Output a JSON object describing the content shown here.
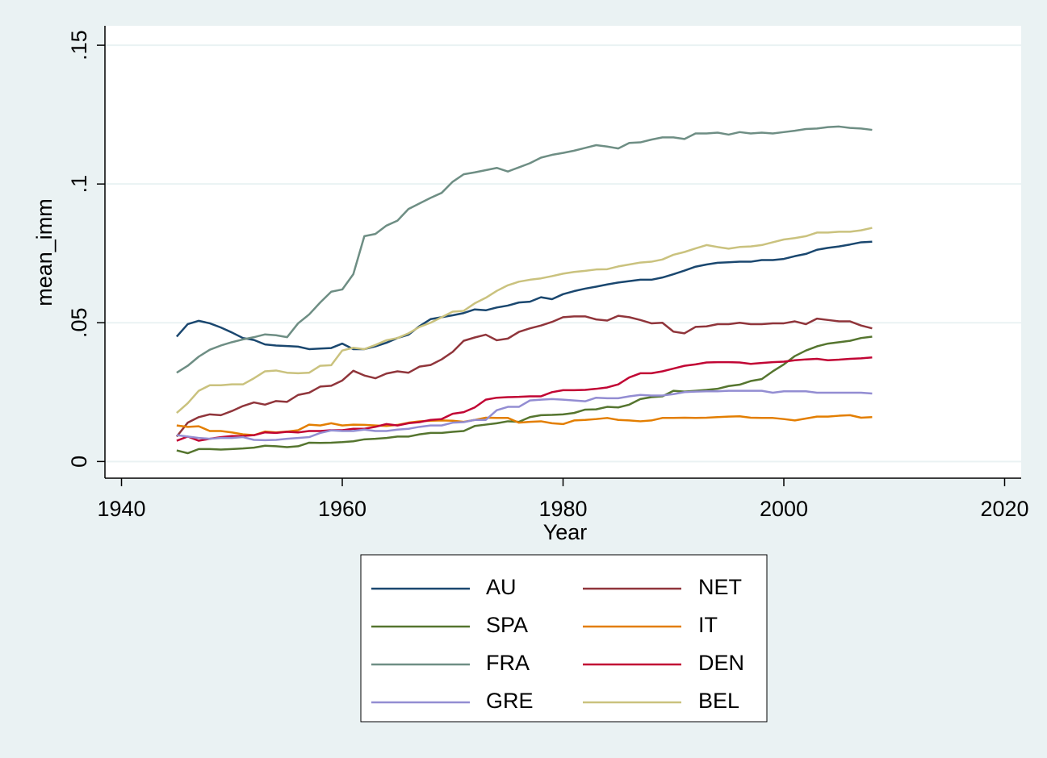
{
  "chart_data": {
    "type": "line",
    "x_label": "Year",
    "y_label": "mean_imm",
    "x": [
      1945,
      1946,
      1947,
      1948,
      1949,
      1950,
      1951,
      1952,
      1953,
      1954,
      1955,
      1956,
      1957,
      1958,
      1959,
      1960,
      1961,
      1962,
      1963,
      1964,
      1965,
      1966,
      1967,
      1968,
      1969,
      1970,
      1971,
      1972,
      1973,
      1974,
      1975,
      1976,
      1977,
      1978,
      1979,
      1980,
      1981,
      1982,
      1983,
      1984,
      1985,
      1986,
      1987,
      1988,
      1989,
      1990,
      1991,
      1992,
      1993,
      1994,
      1995,
      1996,
      1997,
      1998,
      1999,
      2000,
      2001,
      2002,
      2003,
      2004,
      2005,
      2006,
      2007,
      2008
    ],
    "xlim": [
      1938.5,
      2021.5
    ],
    "xticks": [
      1940,
      1960,
      1980,
      2000,
      2020
    ],
    "ylim": [
      -0.006,
      0.157
    ],
    "yticks": [
      0,
      {
        "value": 0.05,
        "label": ".05"
      },
      {
        "value": 0.1,
        "label": ".1"
      },
      {
        "value": 0.15,
        "label": ".15"
      }
    ],
    "grid": true,
    "legend": "bottom",
    "series": [
      {
        "name": "AU",
        "color": "#1a476f",
        "values": [
          0.045,
          0.0495,
          0.0507,
          0.0498,
          0.0483,
          0.0465,
          0.0445,
          0.0438,
          0.0422,
          0.0418,
          0.0416,
          0.0414,
          0.0405,
          0.0407,
          0.0409,
          0.0425,
          0.0405,
          0.0405,
          0.0415,
          0.0428,
          0.0445,
          0.0457,
          0.0488,
          0.0513,
          0.052,
          0.0527,
          0.0535,
          0.0548,
          0.0545,
          0.0555,
          0.0562,
          0.0573,
          0.0576,
          0.0592,
          0.0585,
          0.0603,
          0.0614,
          0.0623,
          0.063,
          0.0638,
          0.0645,
          0.065,
          0.0655,
          0.0655,
          0.0663,
          0.0675,
          0.0688,
          0.0702,
          0.071,
          0.0716,
          0.0718,
          0.072,
          0.072,
          0.0726,
          0.0726,
          0.073,
          0.074,
          0.0748,
          0.0763,
          0.077,
          0.0775,
          0.0782,
          0.079,
          0.0792
        ]
      },
      {
        "name": "NET",
        "color": "#90353b",
        "values": [
          0.009,
          0.014,
          0.016,
          0.017,
          0.0167,
          0.0182,
          0.02,
          0.0213,
          0.0205,
          0.0218,
          0.0215,
          0.024,
          0.0248,
          0.027,
          0.0273,
          0.0292,
          0.0327,
          0.031,
          0.03,
          0.0317,
          0.0325,
          0.032,
          0.0342,
          0.0348,
          0.0368,
          0.0395,
          0.0435,
          0.0447,
          0.0457,
          0.0437,
          0.0443,
          0.0467,
          0.048,
          0.049,
          0.0503,
          0.052,
          0.0523,
          0.0523,
          0.0512,
          0.0508,
          0.0525,
          0.052,
          0.051,
          0.0498,
          0.05,
          0.0468,
          0.0462,
          0.0485,
          0.0487,
          0.0495,
          0.0495,
          0.05,
          0.0495,
          0.0495,
          0.0498,
          0.0498,
          0.0505,
          0.0495,
          0.0515,
          0.051,
          0.0505,
          0.0505,
          0.049,
          0.048
        ]
      },
      {
        "name": "SPA",
        "color": "#55752f",
        "values": [
          0.004,
          0.003,
          0.0045,
          0.0045,
          0.0043,
          0.0045,
          0.0047,
          0.005,
          0.0057,
          0.0055,
          0.0052,
          0.0055,
          0.0068,
          0.0067,
          0.0068,
          0.007,
          0.0073,
          0.008,
          0.0082,
          0.0085,
          0.009,
          0.009,
          0.0098,
          0.0103,
          0.0103,
          0.0107,
          0.011,
          0.0128,
          0.0133,
          0.0138,
          0.0145,
          0.0143,
          0.016,
          0.0167,
          0.0168,
          0.017,
          0.0175,
          0.0187,
          0.0188,
          0.0197,
          0.0195,
          0.0205,
          0.0225,
          0.0232,
          0.0235,
          0.0255,
          0.0252,
          0.0255,
          0.0258,
          0.0262,
          0.0272,
          0.0277,
          0.029,
          0.0297,
          0.0325,
          0.035,
          0.038,
          0.04,
          0.0415,
          0.0425,
          0.043,
          0.0435,
          0.0445,
          0.045
        ]
      },
      {
        "name": "IT",
        "color": "#e37e00",
        "values": [
          0.013,
          0.0125,
          0.0127,
          0.011,
          0.011,
          0.0105,
          0.0098,
          0.0095,
          0.0108,
          0.0105,
          0.0108,
          0.0113,
          0.0133,
          0.013,
          0.0138,
          0.013,
          0.0133,
          0.0132,
          0.013,
          0.0128,
          0.0132,
          0.014,
          0.0145,
          0.0147,
          0.0148,
          0.0147,
          0.0143,
          0.015,
          0.0158,
          0.0157,
          0.0157,
          0.014,
          0.0143,
          0.0145,
          0.0138,
          0.0135,
          0.0148,
          0.015,
          0.0153,
          0.0157,
          0.015,
          0.0148,
          0.0145,
          0.0148,
          0.0157,
          0.0157,
          0.0158,
          0.0157,
          0.0158,
          0.016,
          0.0162,
          0.0163,
          0.0158,
          0.0157,
          0.0157,
          0.0153,
          0.0148,
          0.0155,
          0.0162,
          0.0162,
          0.0165,
          0.0167,
          0.0158,
          0.016
        ]
      },
      {
        "name": "FRA",
        "color": "#6e8e84",
        "values": [
          0.032,
          0.0345,
          0.0378,
          0.0403,
          0.0418,
          0.043,
          0.044,
          0.0448,
          0.0458,
          0.0455,
          0.0448,
          0.0498,
          0.053,
          0.0573,
          0.0612,
          0.062,
          0.0675,
          0.0812,
          0.082,
          0.085,
          0.0868,
          0.091,
          0.093,
          0.095,
          0.0968,
          0.1008,
          0.1035,
          0.1042,
          0.105,
          0.1058,
          0.1045,
          0.106,
          0.1075,
          0.1095,
          0.1105,
          0.1112,
          0.112,
          0.113,
          0.114,
          0.1135,
          0.1128,
          0.1148,
          0.115,
          0.116,
          0.1168,
          0.1168,
          0.1162,
          0.1182,
          0.1182,
          0.1185,
          0.1178,
          0.1187,
          0.1182,
          0.1185,
          0.1182,
          0.1187,
          0.1192,
          0.1198,
          0.12,
          0.1205,
          0.1207,
          0.1202,
          0.12,
          0.1195
        ]
      },
      {
        "name": "DEN",
        "color": "#c10534",
        "values": [
          0.0075,
          0.009,
          0.0075,
          0.0082,
          0.0088,
          0.0092,
          0.0092,
          0.0095,
          0.0105,
          0.0103,
          0.0107,
          0.0105,
          0.011,
          0.011,
          0.0113,
          0.0113,
          0.0118,
          0.0118,
          0.0125,
          0.0135,
          0.013,
          0.0138,
          0.0142,
          0.015,
          0.0153,
          0.0172,
          0.0178,
          0.0195,
          0.0223,
          0.023,
          0.0232,
          0.0233,
          0.0235,
          0.0235,
          0.025,
          0.0257,
          0.0257,
          0.0258,
          0.0262,
          0.0267,
          0.0278,
          0.0303,
          0.0318,
          0.0318,
          0.0325,
          0.0335,
          0.0345,
          0.035,
          0.0357,
          0.0358,
          0.0358,
          0.0357,
          0.0352,
          0.0355,
          0.0358,
          0.036,
          0.0365,
          0.0368,
          0.037,
          0.0365,
          0.0367,
          0.037,
          0.0372,
          0.0375
        ]
      },
      {
        "name": "GRE",
        "color": "#938dd2",
        "values": [
          0.0095,
          0.009,
          0.0085,
          0.0082,
          0.0085,
          0.0085,
          0.0088,
          0.0078,
          0.0077,
          0.0078,
          0.0082,
          0.0085,
          0.0088,
          0.0103,
          0.0112,
          0.011,
          0.011,
          0.0115,
          0.011,
          0.011,
          0.0115,
          0.0118,
          0.0125,
          0.013,
          0.013,
          0.014,
          0.0142,
          0.015,
          0.015,
          0.0185,
          0.0197,
          0.0197,
          0.022,
          0.0223,
          0.0225,
          0.0223,
          0.022,
          0.0217,
          0.023,
          0.0228,
          0.0228,
          0.0235,
          0.024,
          0.0238,
          0.0238,
          0.0243,
          0.025,
          0.0252,
          0.0253,
          0.0253,
          0.0255,
          0.0255,
          0.0255,
          0.0255,
          0.0248,
          0.0253,
          0.0253,
          0.0253,
          0.0248,
          0.0248,
          0.0248,
          0.0248,
          0.0248,
          0.0245
        ]
      },
      {
        "name": "BEL",
        "color": "#cac27e",
        "values": [
          0.0175,
          0.021,
          0.0255,
          0.0275,
          0.0275,
          0.0278,
          0.0278,
          0.03,
          0.0325,
          0.0328,
          0.032,
          0.0318,
          0.032,
          0.0345,
          0.0347,
          0.04,
          0.041,
          0.0405,
          0.042,
          0.0437,
          0.0445,
          0.0462,
          0.0485,
          0.05,
          0.052,
          0.054,
          0.0543,
          0.057,
          0.059,
          0.0615,
          0.0635,
          0.0648,
          0.0655,
          0.066,
          0.0668,
          0.0677,
          0.0683,
          0.0687,
          0.0692,
          0.0693,
          0.0703,
          0.071,
          0.0717,
          0.072,
          0.0728,
          0.0745,
          0.0755,
          0.0768,
          0.078,
          0.0773,
          0.0767,
          0.0773,
          0.0775,
          0.078,
          0.079,
          0.08,
          0.0805,
          0.0812,
          0.0825,
          0.0825,
          0.0828,
          0.0828,
          0.0833,
          0.0842
        ]
      }
    ]
  }
}
